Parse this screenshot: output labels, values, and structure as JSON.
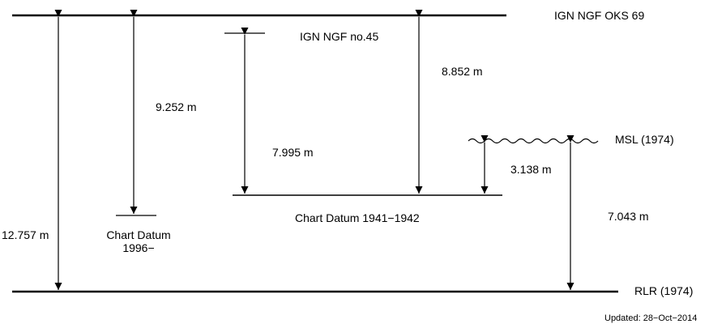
{
  "datums": {
    "ign_ngf_oks_69": "IGN  NGF OKS 69",
    "ign_ngf_no45": "IGN NGF no.45",
    "mean_sea_level": "MSL (1974)",
    "chart_datum_1941": "Chart Datum 1941−1942",
    "chart_datum_1996_line1": "Chart Datum",
    "chart_datum_1996_line2": "1996−",
    "rlr": "RLR (1974)"
  },
  "measurements": {
    "oks69_to_rlr": "12.757 m",
    "oks69_to_chart_datum_1996": "9.252 m",
    "no45_to_chart_datum_1941": "7.995 m",
    "oks69_to_chart_datum_1941": "8.852 m",
    "msl_to_chart_datum_1941": "3.138 m",
    "msl_to_rlr": "7.043 m"
  },
  "footer": {
    "updated": "Updated: 28−Oct−2014"
  }
}
